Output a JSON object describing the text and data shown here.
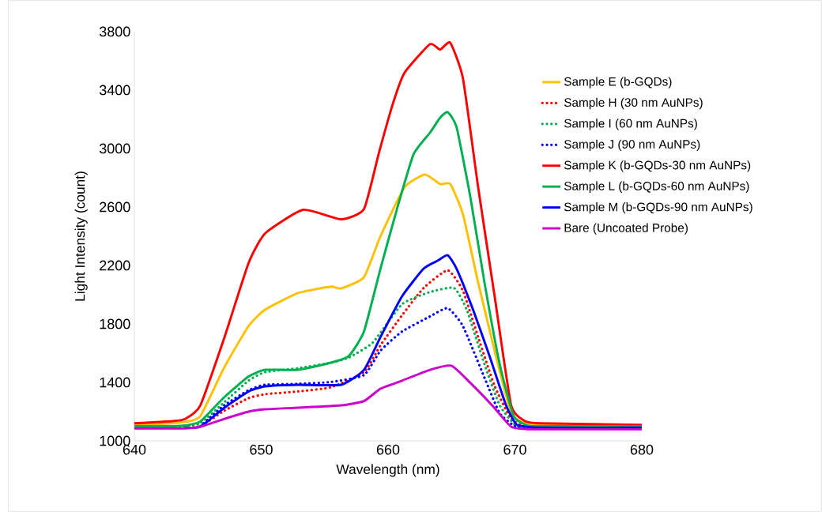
{
  "chart_data": {
    "type": "line",
    "xlabel": "Wavelength (nm)",
    "ylabel": "Light Intensity (count)",
    "xlim": [
      640,
      680
    ],
    "ylim": [
      1000,
      3800
    ],
    "xticks": [
      640,
      650,
      660,
      670,
      680
    ],
    "yticks": [
      1000,
      1400,
      1800,
      2200,
      2600,
      3000,
      3400,
      3800
    ],
    "grid": false,
    "legend": "right",
    "marker": "none",
    "series": [
      {
        "name": "Sample E (b-GQDs)",
        "color": "#ffc000",
        "line_style": "solid",
        "x": [
          640,
          643,
          644,
          645.2,
          647.1,
          649,
          650.3,
          652.9,
          655.5,
          656.3,
          658.1,
          659.4,
          661.3,
          662.9,
          664.1,
          664.9,
          665.9,
          667.1,
          668.4,
          669.7,
          670.8,
          672,
          680
        ],
        "values": [
          1110,
          1120,
          1130,
          1170,
          1505,
          1785,
          1897,
          2011,
          2055,
          2043,
          2120,
          2400,
          2735,
          2822,
          2757,
          2757,
          2551,
          2083,
          1617,
          1189,
          1120,
          1110,
          1100
        ]
      },
      {
        "name": "Sample H (30 nm AuNPs)",
        "color": "#ff0000",
        "line_style": "dotted",
        "x": [
          640,
          643,
          644,
          645.2,
          647.1,
          649,
          650.3,
          652.9,
          655.5,
          658.1,
          659.4,
          661.1,
          662.8,
          664.7,
          665.9,
          667.1,
          668.4,
          669.7,
          670.8,
          672,
          680
        ],
        "values": [
          1095,
          1095,
          1095,
          1100,
          1207,
          1292,
          1319,
          1338,
          1367,
          1470,
          1654,
          1859,
          2046,
          2167,
          2027,
          1710,
          1375,
          1151,
          1100,
          1095,
          1095
        ]
      },
      {
        "name": "Sample I (60 nm AuNPs)",
        "color": "#00b050",
        "line_style": "dotted",
        "x": [
          640,
          643,
          644,
          645.2,
          647.1,
          649,
          650.3,
          652.9,
          655.5,
          656.9,
          658.8,
          661.1,
          663.3,
          665.2,
          666.2,
          667.6,
          668.8,
          670,
          671,
          672,
          680
        ],
        "values": [
          1095,
          1095,
          1100,
          1120,
          1265,
          1412,
          1470,
          1497,
          1535,
          1570,
          1673,
          1935,
          2018,
          2046,
          1897,
          1524,
          1243,
          1110,
          1095,
          1095,
          1095
        ]
      },
      {
        "name": "Sample J (90 nm AuNPs)",
        "color": "#0000ff",
        "line_style": "dotted",
        "x": [
          645.2,
          647.1,
          649,
          650.3,
          652.9,
          655.5,
          658.1,
          659.4,
          661.1,
          663.3,
          664.7,
          665.9,
          667.6,
          668.8,
          670,
          671,
          672,
          680
        ],
        "values": [
          1100,
          1244,
          1346,
          1384,
          1390,
          1403,
          1450,
          1617,
          1748,
          1851,
          1908,
          1785,
          1432,
          1189,
          1100,
          1090,
          1090,
          1090
        ]
      },
      {
        "name": "Sample K (b-GQDs-30 nm AuNPs)",
        "color": "#ff0000",
        "line_style": "solid",
        "x": [
          640,
          643,
          644,
          645.2,
          647.1,
          649,
          650.3,
          653.3,
          656.3,
          658.1,
          659.3,
          660.4,
          661.3,
          663.3,
          664.1,
          664.9,
          665.9,
          667.1,
          668.4,
          669.7,
          670.8,
          672,
          680
        ],
        "values": [
          1120,
          1135,
          1150,
          1243,
          1708,
          2216,
          2419,
          2581,
          2516,
          2586,
          2978,
          3313,
          3519,
          3714,
          3677,
          3724,
          3481,
          2735,
          1989,
          1243,
          1135,
          1120,
          1110
        ]
      },
      {
        "name": "Sample L (b-GQDs-60 nm AuNPs)",
        "color": "#00b050",
        "line_style": "solid",
        "x": [
          640,
          643,
          644,
          645.2,
          647.1,
          649,
          650.3,
          652.9,
          655.5,
          656.9,
          658.1,
          659.4,
          660.7,
          662,
          663.3,
          664.1,
          664.7,
          665.4,
          666.5,
          667.6,
          668.8,
          669.9,
          671,
          672,
          680
        ],
        "values": [
          1100,
          1100,
          1105,
          1133,
          1300,
          1440,
          1486,
          1486,
          1535,
          1580,
          1748,
          2178,
          2586,
          2959,
          3108,
          3211,
          3249,
          3146,
          2661,
          2083,
          1524,
          1170,
          1105,
          1100,
          1100
        ]
      },
      {
        "name": "Sample M (b-GQDs-90 nm AuNPs)",
        "color": "#0000ff",
        "line_style": "solid",
        "x": [
          644,
          645.2,
          647.1,
          649,
          650.3,
          652.9,
          656.3,
          658.1,
          659.4,
          661.1,
          662.8,
          663.9,
          664.7,
          665.4,
          666.7,
          668,
          669.3,
          670.1,
          671,
          672,
          680
        ],
        "values": [
          1090,
          1097,
          1227,
          1338,
          1373,
          1384,
          1384,
          1486,
          1710,
          1989,
          2178,
          2232,
          2270,
          2178,
          1897,
          1580,
          1243,
          1113,
          1095,
          1090,
          1090
        ]
      },
      {
        "name": "Bare (Uncoated Probe)",
        "color": "#cc00cc",
        "line_style": "solid",
        "x": [
          640,
          643,
          644,
          645.2,
          647.1,
          649,
          650.3,
          652.9,
          656.3,
          658.1,
          659.4,
          661.1,
          663.3,
          665,
          666.5,
          668.2,
          669.7,
          671,
          672,
          680
        ],
        "values": [
          1085,
          1085,
          1085,
          1097,
          1151,
          1200,
          1216,
          1227,
          1243,
          1272,
          1357,
          1412,
          1486,
          1514,
          1395,
          1243,
          1097,
          1080,
          1080,
          1080
        ]
      }
    ]
  }
}
